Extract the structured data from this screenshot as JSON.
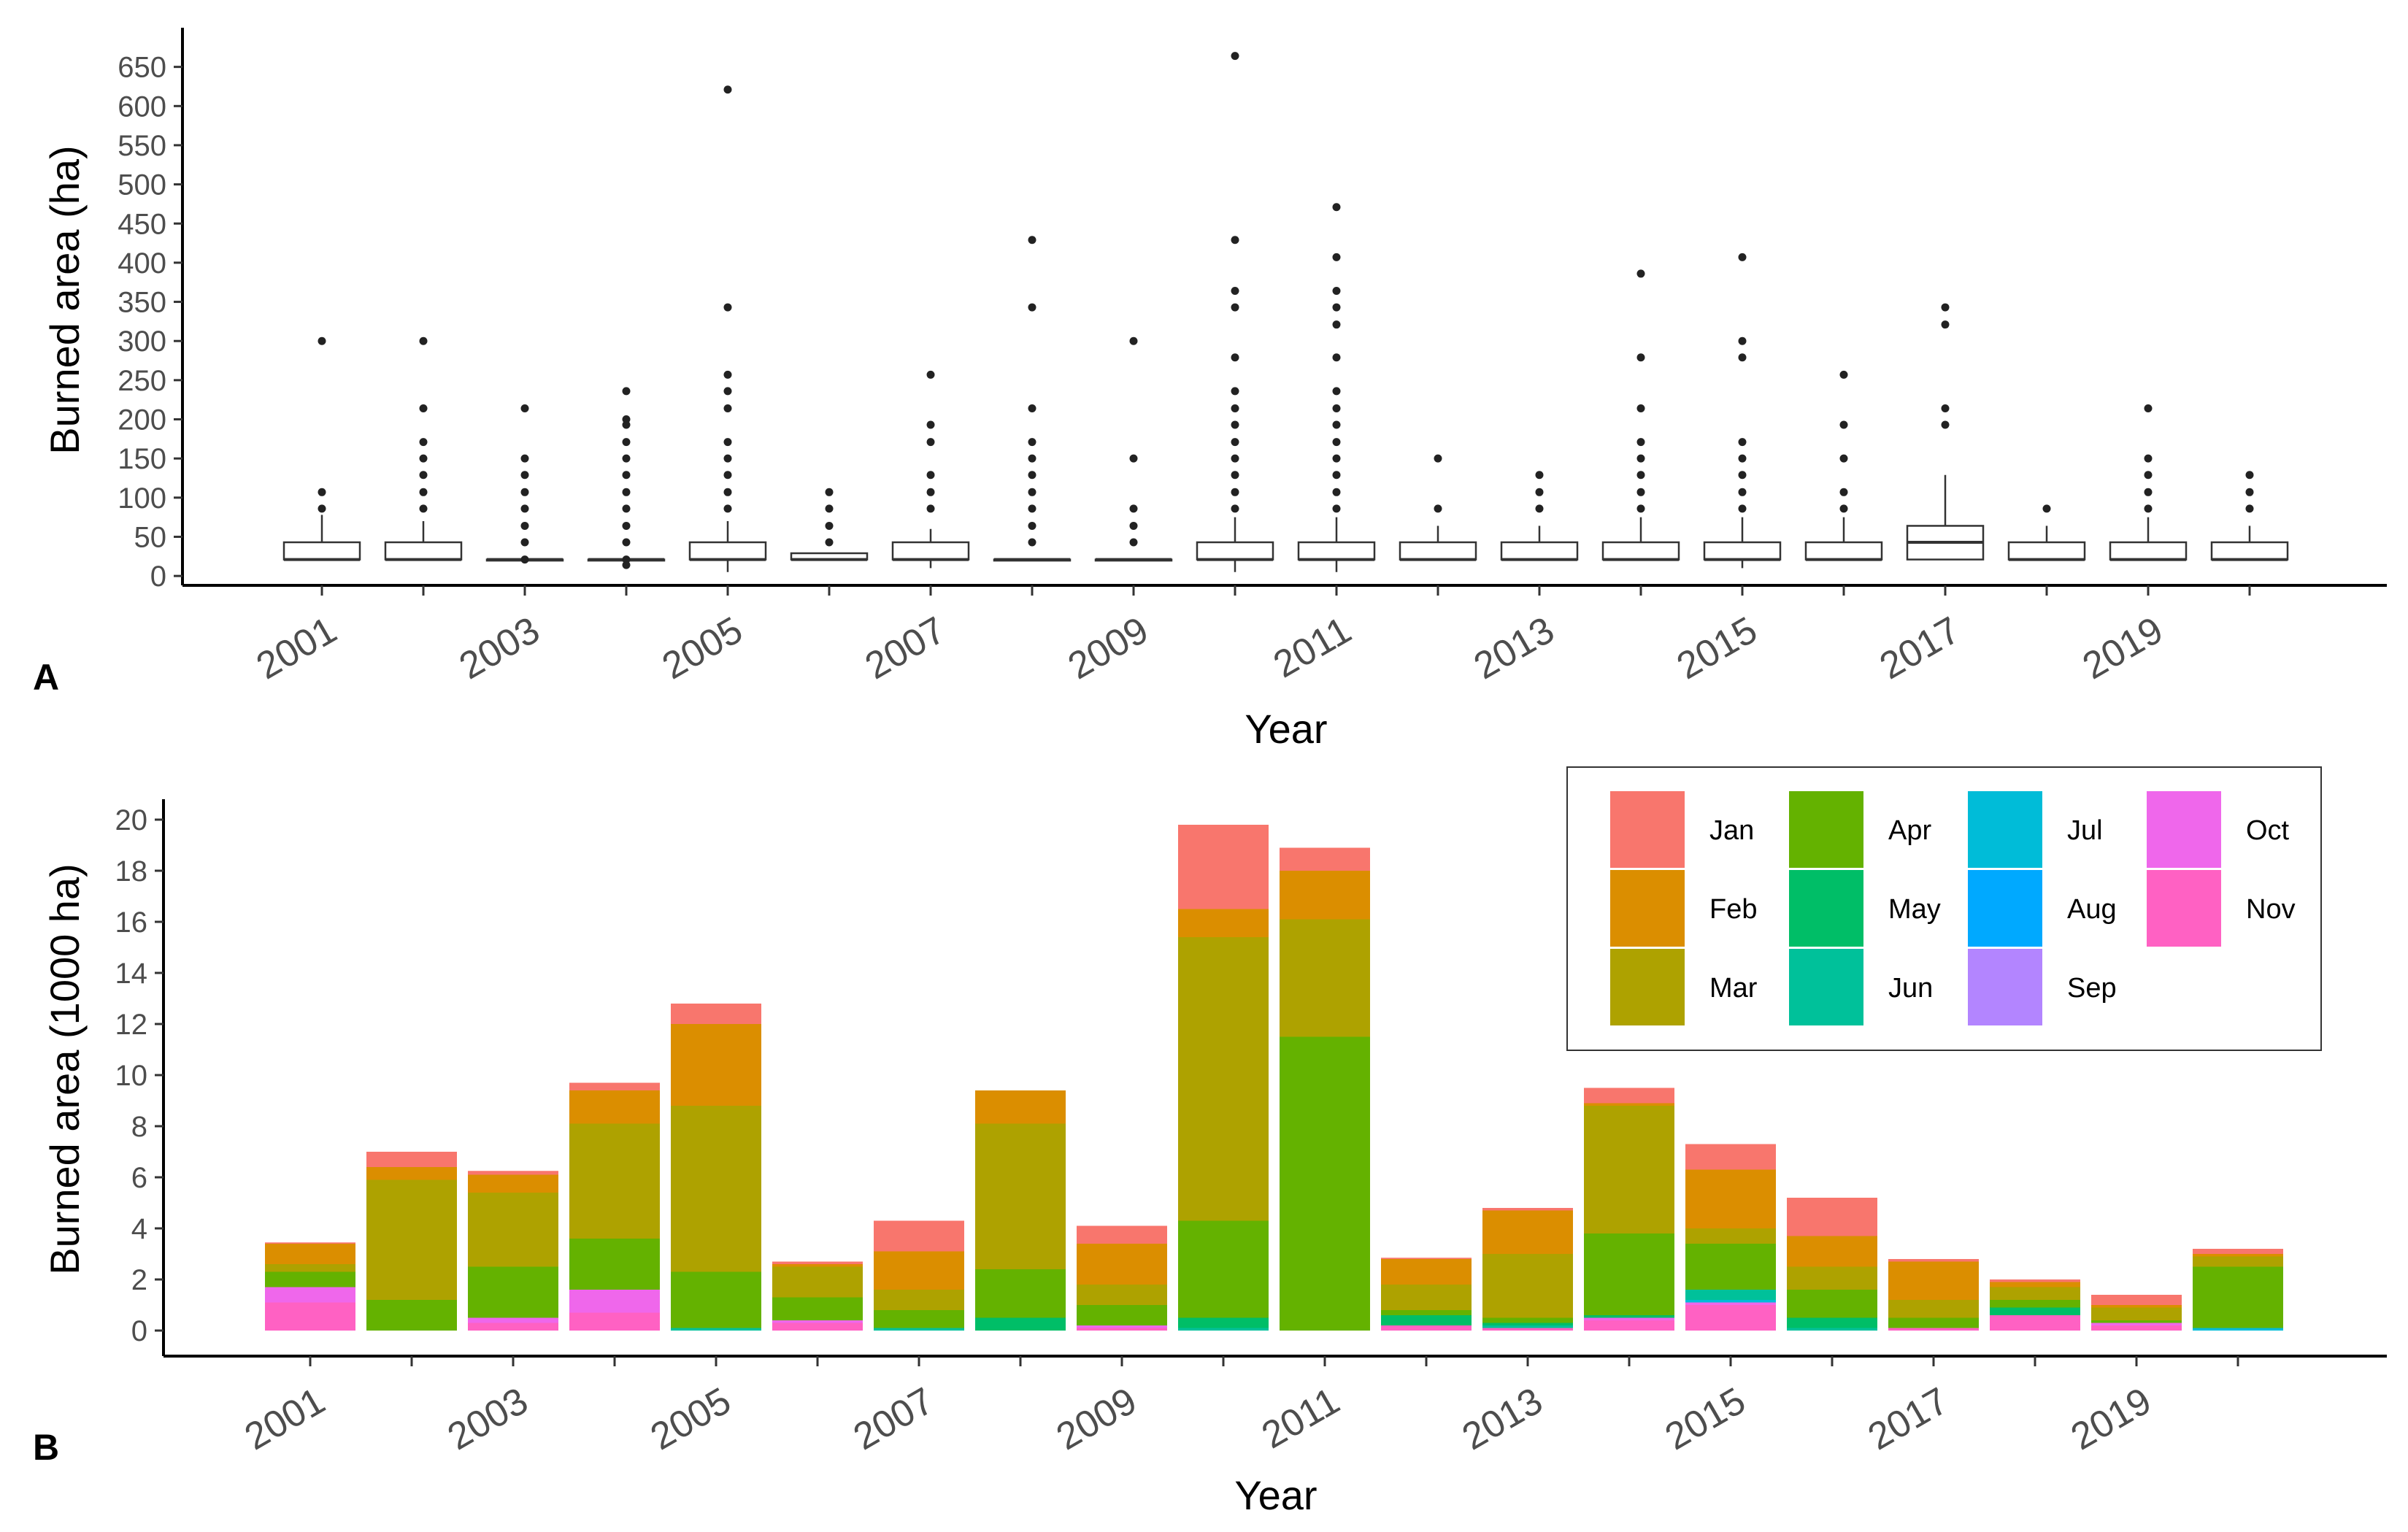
{
  "chart_data": [
    {
      "panel": "A",
      "type": "box",
      "xlabel": "Year",
      "ylabel": "Burned area (ha)",
      "ylim": [
        -12,
        700
      ],
      "yticks": [
        0,
        50,
        100,
        150,
        200,
        250,
        300,
        350,
        400,
        450,
        500,
        550,
        600,
        650
      ],
      "years": [
        2001,
        2002,
        2003,
        2004,
        2005,
        2006,
        2007,
        2008,
        2009,
        2010,
        2011,
        2012,
        2013,
        2014,
        2015,
        2016,
        2017,
        2018,
        2019,
        2020
      ],
      "xtick_labels": [
        "2001",
        "2003",
        "2005",
        "2007",
        "2009",
        "2011",
        "2013",
        "2015",
        "2017",
        "2019"
      ],
      "boxes": [
        {
          "year": 2001,
          "q1": 21,
          "median": 21,
          "q3": 43,
          "whisker_low": 21,
          "whisker_high": 78,
          "outliers": [
            86,
            107,
            300
          ]
        },
        {
          "year": 2002,
          "q1": 21,
          "median": 21,
          "q3": 43,
          "whisker_low": 21,
          "whisker_high": 70,
          "outliers": [
            86,
            107,
            129,
            150,
            171,
            214,
            300
          ]
        },
        {
          "year": 2003,
          "q1": 21,
          "median": 21,
          "q3": 21,
          "whisker_low": 21,
          "whisker_high": 21,
          "outliers": [
            21,
            43,
            64,
            86,
            107,
            129,
            150,
            214
          ]
        },
        {
          "year": 2004,
          "q1": 21,
          "median": 21,
          "q3": 21,
          "whisker_low": 15,
          "whisker_high": 21,
          "outliers": [
            14,
            21,
            43,
            64,
            86,
            107,
            129,
            150,
            171,
            193,
            200,
            236
          ]
        },
        {
          "year": 2005,
          "q1": 21,
          "median": 21,
          "q3": 43,
          "whisker_low": 5,
          "whisker_high": 70,
          "outliers": [
            86,
            107,
            129,
            150,
            171,
            214,
            236,
            257,
            343,
            621
          ]
        },
        {
          "year": 2006,
          "q1": 21,
          "median": 21,
          "q3": 29,
          "whisker_low": 21,
          "whisker_high": 29,
          "outliers": [
            43,
            64,
            86,
            107
          ]
        },
        {
          "year": 2007,
          "q1": 21,
          "median": 21,
          "q3": 43,
          "whisker_low": 10,
          "whisker_high": 60,
          "outliers": [
            86,
            107,
            129,
            171,
            193,
            257
          ]
        },
        {
          "year": 2008,
          "q1": 21,
          "median": 21,
          "q3": 21,
          "whisker_low": 21,
          "whisker_high": 21,
          "outliers": [
            43,
            64,
            86,
            107,
            129,
            150,
            171,
            214,
            343,
            429
          ]
        },
        {
          "year": 2009,
          "q1": 21,
          "median": 21,
          "q3": 21,
          "whisker_low": 21,
          "whisker_high": 21,
          "outliers": [
            43,
            64,
            86,
            150,
            300
          ]
        },
        {
          "year": 2010,
          "q1": 21,
          "median": 21,
          "q3": 43,
          "whisker_low": 5,
          "whisker_high": 75,
          "outliers": [
            86,
            107,
            129,
            150,
            171,
            193,
            214,
            236,
            279,
            343,
            364,
            429,
            664
          ]
        },
        {
          "year": 2011,
          "q1": 21,
          "median": 21,
          "q3": 43,
          "whisker_low": 5,
          "whisker_high": 75,
          "outliers": [
            86,
            107,
            129,
            150,
            171,
            193,
            214,
            236,
            279,
            321,
            343,
            364,
            407,
            471
          ]
        },
        {
          "year": 2012,
          "q1": 21,
          "median": 21,
          "q3": 43,
          "whisker_low": 21,
          "whisker_high": 64,
          "outliers": [
            86,
            150
          ]
        },
        {
          "year": 2013,
          "q1": 21,
          "median": 21,
          "q3": 43,
          "whisker_low": 21,
          "whisker_high": 64,
          "outliers": [
            86,
            107,
            129
          ]
        },
        {
          "year": 2014,
          "q1": 21,
          "median": 21,
          "q3": 43,
          "whisker_low": 21,
          "whisker_high": 75,
          "outliers": [
            86,
            107,
            129,
            150,
            171,
            214,
            279,
            386
          ]
        },
        {
          "year": 2015,
          "q1": 21,
          "median": 21,
          "q3": 43,
          "whisker_low": 10,
          "whisker_high": 75,
          "outliers": [
            86,
            107,
            129,
            150,
            171,
            279,
            300,
            407
          ]
        },
        {
          "year": 2016,
          "q1": 21,
          "median": 21,
          "q3": 43,
          "whisker_low": 21,
          "whisker_high": 75,
          "outliers": [
            86,
            107,
            150,
            193,
            257
          ]
        },
        {
          "year": 2017,
          "q1": 21,
          "median": 43,
          "q3": 64,
          "whisker_low": 21,
          "whisker_high": 129,
          "outliers": [
            193,
            214,
            321,
            343
          ]
        },
        {
          "year": 2018,
          "q1": 21,
          "median": 21,
          "q3": 43,
          "whisker_low": 21,
          "whisker_high": 64,
          "outliers": [
            86
          ]
        },
        {
          "year": 2019,
          "q1": 21,
          "median": 21,
          "q3": 43,
          "whisker_low": 21,
          "whisker_high": 75,
          "outliers": [
            86,
            107,
            129,
            150,
            214
          ]
        },
        {
          "year": 2020,
          "q1": 21,
          "median": 21,
          "q3": 43,
          "whisker_low": 21,
          "whisker_high": 64,
          "outliers": [
            86,
            107,
            129
          ]
        }
      ]
    },
    {
      "panel": "B",
      "type": "bar",
      "stacked": true,
      "xlabel": "Year",
      "ylabel": "Burned area (1000 ha)",
      "ylim": [
        -1,
        20.8
      ],
      "yticks": [
        0,
        2,
        4,
        6,
        8,
        10,
        12,
        14,
        16,
        18,
        20
      ],
      "categories": [
        2001,
        2002,
        2003,
        2004,
        2005,
        2006,
        2007,
        2008,
        2009,
        2010,
        2011,
        2012,
        2013,
        2014,
        2015,
        2016,
        2017,
        2018,
        2019,
        2020
      ],
      "xtick_labels": [
        "2001",
        "2003",
        "2005",
        "2007",
        "2009",
        "2011",
        "2013",
        "2015",
        "2017",
        "2019"
      ],
      "legend_position": "top-right",
      "series": [
        {
          "name": "Nov",
          "color": "#FF61C3",
          "values": [
            1.1,
            0,
            0.3,
            0.7,
            0,
            0.3,
            0,
            0,
            0.1,
            0,
            0,
            0.2,
            0.1,
            0.4,
            1.0,
            0,
            0.1,
            0.6,
            0.2,
            0
          ]
        },
        {
          "name": "Oct",
          "color": "#EF67EB",
          "values": [
            0.6,
            0,
            0.2,
            0.9,
            0,
            0.1,
            0,
            0,
            0.1,
            0,
            0,
            0,
            0,
            0.1,
            0.1,
            0,
            0,
            0,
            0.1,
            0
          ]
        },
        {
          "name": "Sep",
          "color": "#B385FF",
          "values": [
            0,
            0,
            0,
            0,
            0,
            0,
            0,
            0,
            0,
            0,
            0,
            0,
            0,
            0,
            0,
            0,
            0,
            0,
            0,
            0
          ]
        },
        {
          "name": "Aug",
          "color": "#00A9FF",
          "values": [
            0,
            0,
            0,
            0,
            0,
            0,
            0,
            0,
            0,
            0,
            0,
            0,
            0,
            0,
            0,
            0,
            0,
            0,
            0,
            0
          ]
        },
        {
          "name": "Jul",
          "color": "#00BCD8",
          "values": [
            0,
            0,
            0,
            0,
            0,
            0,
            0,
            0,
            0,
            0,
            0,
            0,
            0,
            0,
            0.1,
            0,
            0,
            0,
            0,
            0.1
          ]
        },
        {
          "name": "Jun",
          "color": "#00C19A",
          "values": [
            0,
            0,
            0,
            0,
            0.1,
            0,
            0.1,
            0,
            0,
            0.1,
            0,
            0,
            0.1,
            0,
            0.4,
            0.1,
            0,
            0,
            0,
            0
          ]
        },
        {
          "name": "May",
          "color": "#00BE67",
          "values": [
            0,
            0,
            0,
            0,
            0,
            0,
            0,
            0.5,
            0,
            0.4,
            0,
            0.4,
            0.1,
            0.1,
            0,
            0.4,
            0,
            0.3,
            0,
            0
          ]
        },
        {
          "name": "Apr",
          "color": "#64B200",
          "values": [
            0.6,
            1.2,
            2.0,
            2.0,
            2.2,
            0.9,
            0.7,
            1.9,
            0.8,
            3.8,
            11.5,
            0.2,
            0.2,
            3.2,
            1.8,
            1.1,
            0.4,
            0.3,
            0.1,
            2.4
          ]
        },
        {
          "name": "Mar",
          "color": "#AEA200",
          "values": [
            0.3,
            4.7,
            2.9,
            4.5,
            6.5,
            1.2,
            0.8,
            5.7,
            0.8,
            11.1,
            4.6,
            1.0,
            2.5,
            5.0,
            0.6,
            0.9,
            0.7,
            0.5,
            0.5,
            0.4
          ]
        },
        {
          "name": "Feb",
          "color": "#DB8E00",
          "values": [
            0.8,
            0.5,
            0.7,
            1.3,
            3.2,
            0.1,
            1.5,
            1.3,
            1.6,
            1.1,
            1.9,
            1.0,
            1.7,
            0.1,
            2.3,
            1.2,
            1.5,
            0.2,
            0.1,
            0.1
          ]
        },
        {
          "name": "Jan",
          "color": "#F8766D",
          "values": [
            0.05,
            0.6,
            0.15,
            0.3,
            0.8,
            0.1,
            1.2,
            0,
            0.7,
            3.3,
            0.9,
            0.05,
            0.1,
            0.6,
            1.0,
            1.5,
            0.1,
            0.1,
            0.4,
            0.2
          ]
        }
      ],
      "legend": [
        {
          "name": "Jan",
          "color": "#F8766D"
        },
        {
          "name": "Feb",
          "color": "#DB8E00"
        },
        {
          "name": "Mar",
          "color": "#AEA200"
        },
        {
          "name": "Apr",
          "color": "#64B200"
        },
        {
          "name": "May",
          "color": "#00BE67"
        },
        {
          "name": "Jun",
          "color": "#00C19A"
        },
        {
          "name": "Jul",
          "color": "#00BCD8"
        },
        {
          "name": "Aug",
          "color": "#00A9FF"
        },
        {
          "name": "Sep",
          "color": "#B385FF"
        },
        {
          "name": "Oct",
          "color": "#EF67EB"
        },
        {
          "name": "Nov",
          "color": "#FF61C3"
        }
      ]
    }
  ]
}
